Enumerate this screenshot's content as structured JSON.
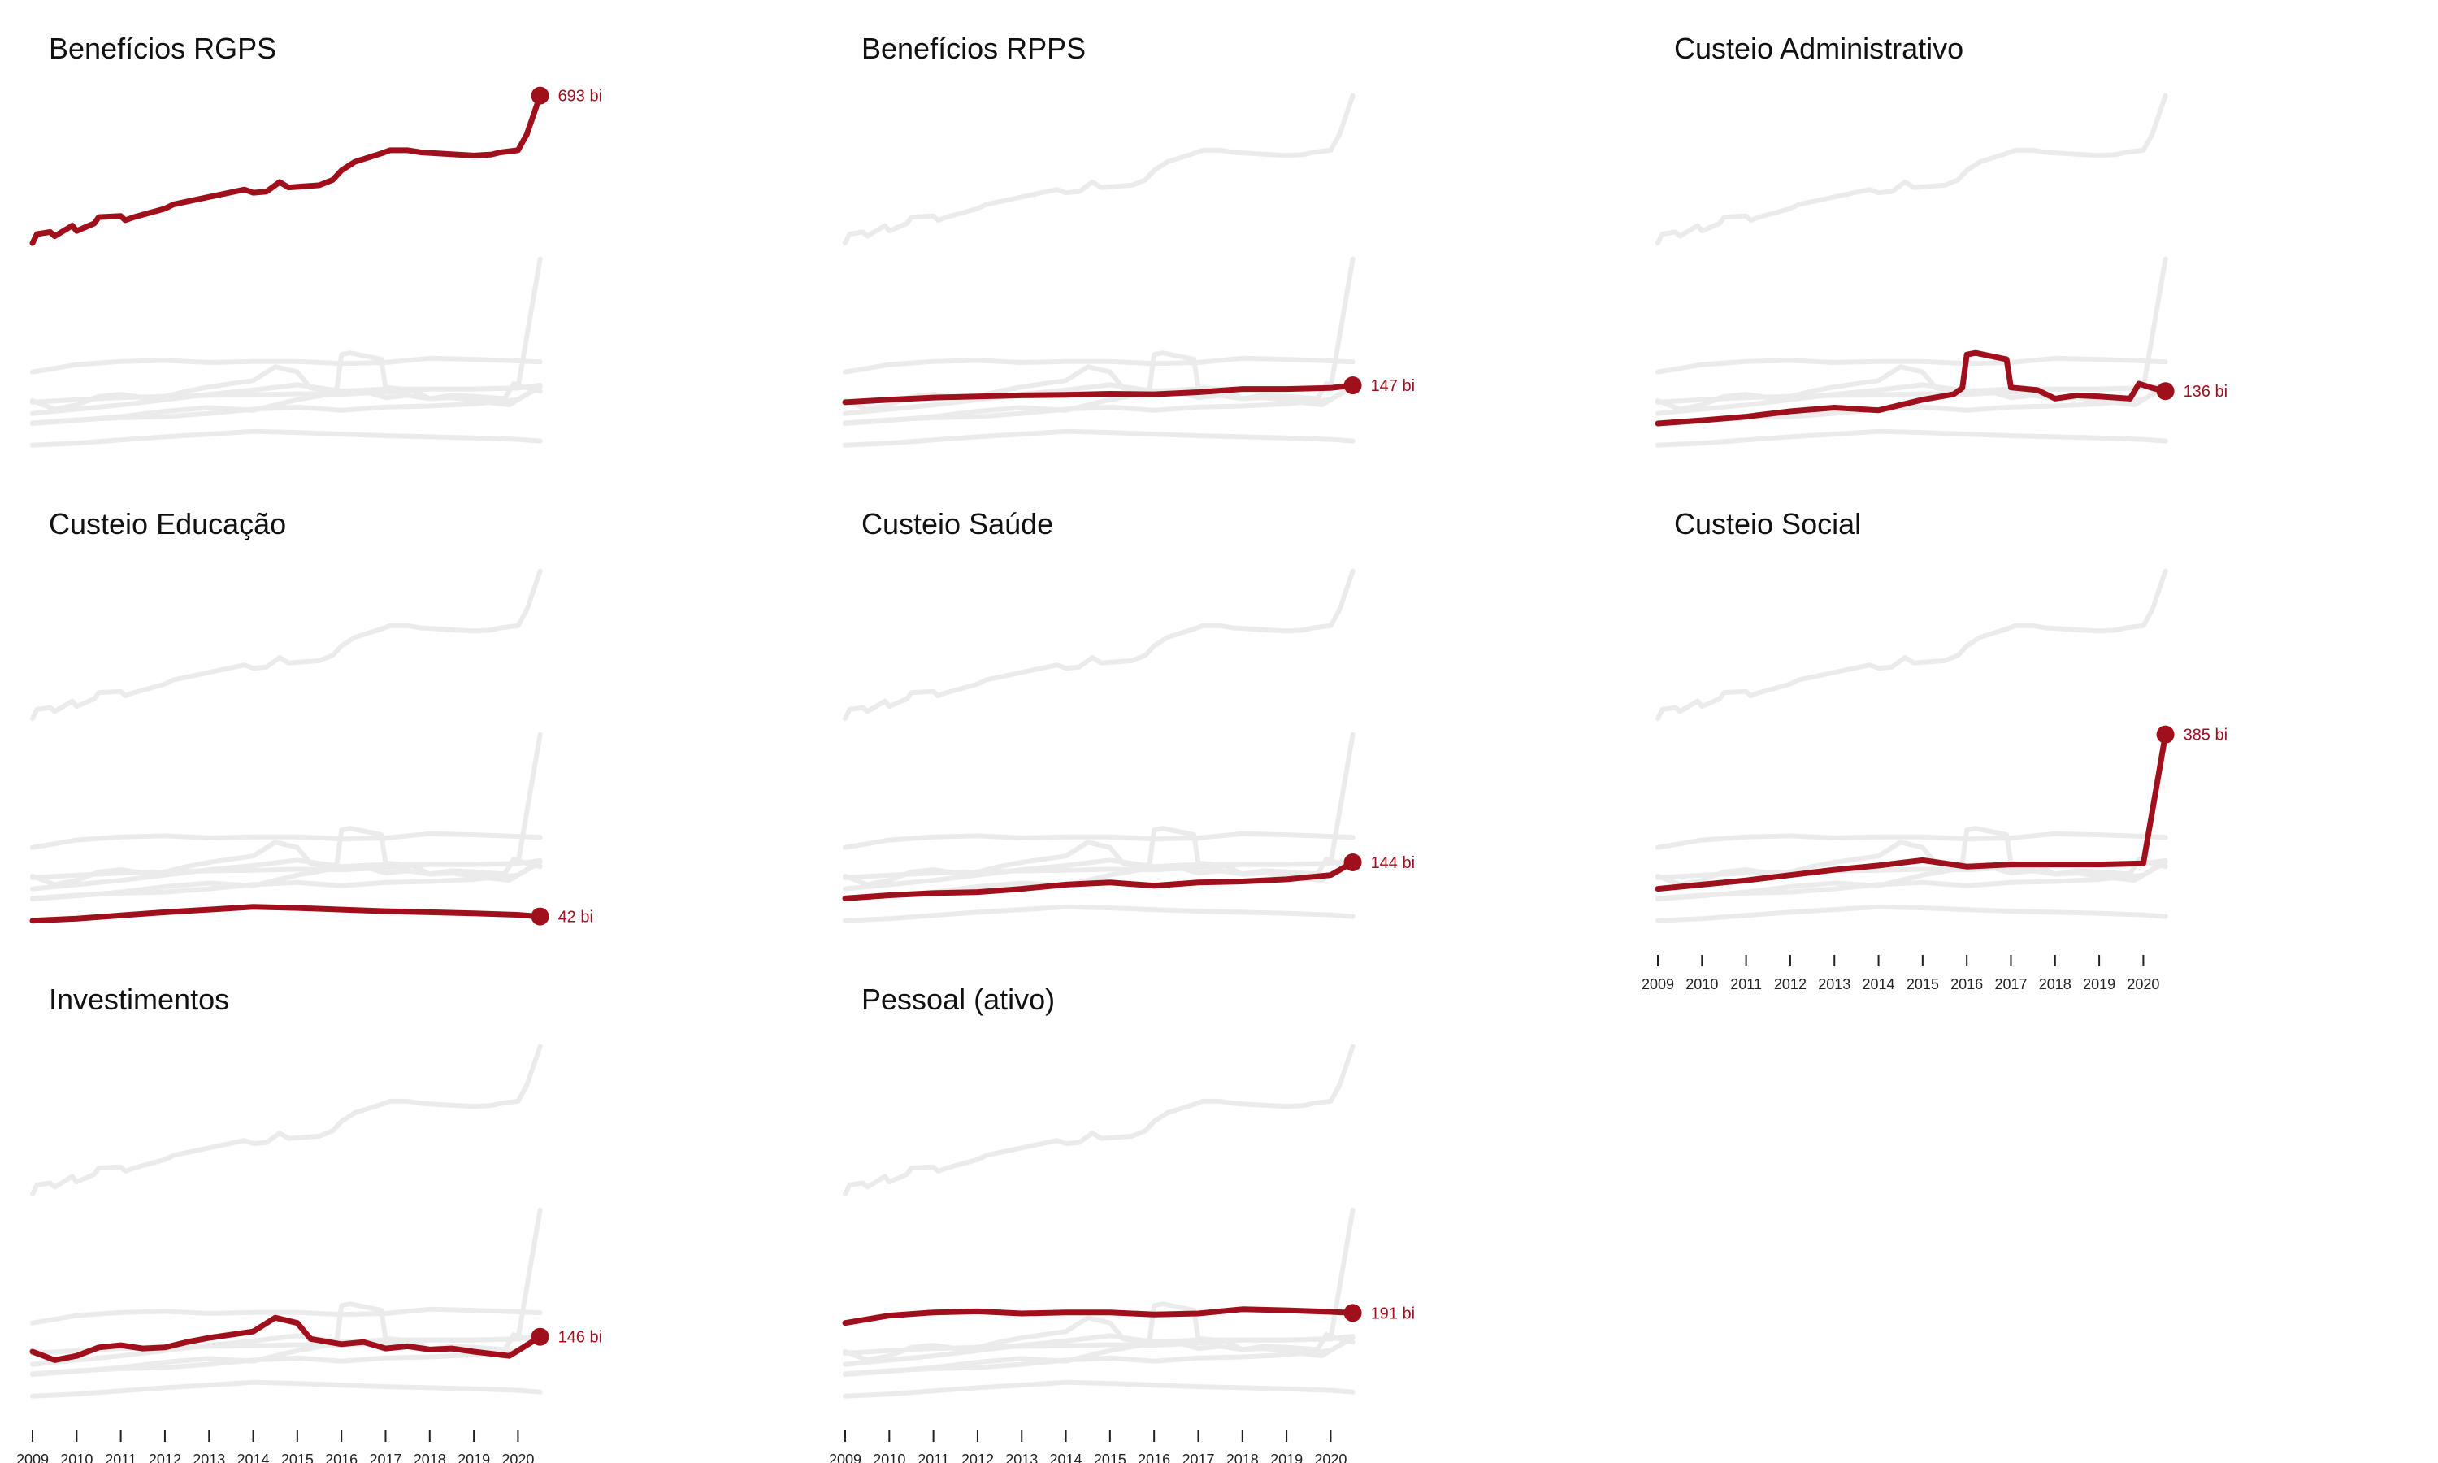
{
  "chart_data": {
    "type": "line",
    "layout": "small-multiples",
    "highlight_color": "#a0101c",
    "context_color": "#ebebeb",
    "grid": false,
    "ylim": [
      0,
      720
    ],
    "x_ticks": [
      "2009",
      "2010",
      "2011",
      "2012",
      "2013",
      "2014",
      "2015",
      "2016",
      "2017",
      "2018",
      "2019",
      "2020"
    ],
    "xlim": [
      2009,
      2020.6
    ],
    "panels": [
      {
        "title": "Benefícios RGPS",
        "end_label": "693 bi",
        "series": [
          [
            2009,
            415
          ],
          [
            2009.1,
            432
          ],
          [
            2009.4,
            436
          ],
          [
            2009.5,
            428
          ],
          [
            2009.9,
            448
          ],
          [
            2010,
            438
          ],
          [
            2010.4,
            452
          ],
          [
            2010.5,
            464
          ],
          [
            2011,
            466
          ],
          [
            2011.1,
            458
          ],
          [
            2011.3,
            464
          ],
          [
            2012,
            480
          ],
          [
            2012.2,
            488
          ],
          [
            2013,
            502
          ],
          [
            2013.8,
            516
          ],
          [
            2014,
            510
          ],
          [
            2014.3,
            512
          ],
          [
            2014.6,
            530
          ],
          [
            2014.8,
            520
          ],
          [
            2015.5,
            524
          ],
          [
            2015.8,
            534
          ],
          [
            2016,
            552
          ],
          [
            2016.3,
            568
          ],
          [
            2016.9,
            584
          ],
          [
            2017.1,
            590
          ],
          [
            2017.5,
            590
          ],
          [
            2017.8,
            586
          ],
          [
            2018.6,
            582
          ],
          [
            2019,
            580
          ],
          [
            2019.4,
            582
          ],
          [
            2019.6,
            586
          ],
          [
            2020,
            590
          ],
          [
            2020.2,
            620
          ],
          [
            2020.5,
            693
          ]
        ],
        "series_values_note": ""
      },
      {
        "title": "Benefícios RPPS",
        "end_label": "147 bi",
        "series": [
          [
            2009,
            115
          ],
          [
            2010,
            120
          ],
          [
            2011,
            124
          ],
          [
            2012,
            126
          ],
          [
            2013,
            128
          ],
          [
            2014,
            129
          ],
          [
            2015,
            131
          ],
          [
            2016,
            130
          ],
          [
            2017,
            134
          ],
          [
            2018,
            140
          ],
          [
            2019,
            140
          ],
          [
            2020,
            142
          ],
          [
            2020.5,
            147
          ]
        ]
      },
      {
        "title": "Custeio Administrativo",
        "end_label": "136 bi",
        "series": [
          [
            2009,
            75
          ],
          [
            2010,
            81
          ],
          [
            2011,
            88
          ],
          [
            2012,
            98
          ],
          [
            2013,
            105
          ],
          [
            2014,
            100
          ],
          [
            2015,
            120
          ],
          [
            2015.7,
            130
          ],
          [
            2015.9,
            142
          ],
          [
            2016,
            205
          ],
          [
            2016.2,
            208
          ],
          [
            2016.9,
            196
          ],
          [
            2017,
            143
          ],
          [
            2017.6,
            138
          ],
          [
            2018,
            122
          ],
          [
            2018.5,
            128
          ],
          [
            2019,
            126
          ],
          [
            2019.7,
            122
          ],
          [
            2019.9,
            150
          ],
          [
            2020.2,
            142
          ],
          [
            2020.5,
            136
          ]
        ]
      },
      {
        "title": "Custeio Educação",
        "end_label": "42 bi",
        "series": [
          [
            2009,
            34
          ],
          [
            2010,
            38
          ],
          [
            2011,
            44
          ],
          [
            2012,
            50
          ],
          [
            2013,
            55
          ],
          [
            2014,
            60
          ],
          [
            2015,
            58
          ],
          [
            2016,
            55
          ],
          [
            2017,
            52
          ],
          [
            2018,
            50
          ],
          [
            2019,
            48
          ],
          [
            2020,
            45
          ],
          [
            2020.5,
            42
          ]
        ]
      },
      {
        "title": "Custeio Saúde",
        "end_label": "144 bi",
        "series": [
          [
            2009,
            76
          ],
          [
            2010,
            82
          ],
          [
            2011,
            86
          ],
          [
            2012,
            88
          ],
          [
            2013,
            94
          ],
          [
            2014,
            102
          ],
          [
            2015,
            106
          ],
          [
            2016,
            100
          ],
          [
            2017,
            106
          ],
          [
            2018,
            108
          ],
          [
            2019,
            112
          ],
          [
            2020,
            120
          ],
          [
            2020.5,
            144
          ]
        ]
      },
      {
        "title": "Custeio Social",
        "end_label": "385 bi",
        "series": [
          [
            2009,
            94
          ],
          [
            2010,
            102
          ],
          [
            2011,
            110
          ],
          [
            2012,
            120
          ],
          [
            2013,
            130
          ],
          [
            2014,
            138
          ],
          [
            2015,
            148
          ],
          [
            2016,
            136
          ],
          [
            2017,
            140
          ],
          [
            2018,
            140
          ],
          [
            2019,
            140
          ],
          [
            2020,
            142
          ],
          [
            2020.5,
            385
          ]
        ]
      },
      {
        "title": "Investimentos",
        "end_label": "146 bi",
        "series": [
          [
            2009,
            118
          ],
          [
            2009.5,
            102
          ],
          [
            2010,
            110
          ],
          [
            2010.5,
            126
          ],
          [
            2011,
            130
          ],
          [
            2011.5,
            124
          ],
          [
            2012,
            126
          ],
          [
            2012.5,
            136
          ],
          [
            2013,
            144
          ],
          [
            2014,
            156
          ],
          [
            2014.5,
            182
          ],
          [
            2015,
            172
          ],
          [
            2015.3,
            142
          ],
          [
            2016,
            132
          ],
          [
            2016.5,
            136
          ],
          [
            2017,
            124
          ],
          [
            2017.5,
            128
          ],
          [
            2018,
            122
          ],
          [
            2018.5,
            124
          ],
          [
            2019,
            118
          ],
          [
            2019.8,
            110
          ],
          [
            2020,
            120
          ],
          [
            2020.5,
            146
          ]
        ]
      },
      {
        "title": "Pessoal (ativo)",
        "end_label": "191 bi",
        "series": [
          [
            2009,
            172
          ],
          [
            2010,
            186
          ],
          [
            2011,
            192
          ],
          [
            2012,
            194
          ],
          [
            2013,
            190
          ],
          [
            2014,
            192
          ],
          [
            2015,
            192
          ],
          [
            2016,
            188
          ],
          [
            2017,
            190
          ],
          [
            2018,
            198
          ],
          [
            2019,
            196
          ],
          [
            2020,
            193
          ],
          [
            2020.5,
            191
          ]
        ]
      }
    ]
  }
}
